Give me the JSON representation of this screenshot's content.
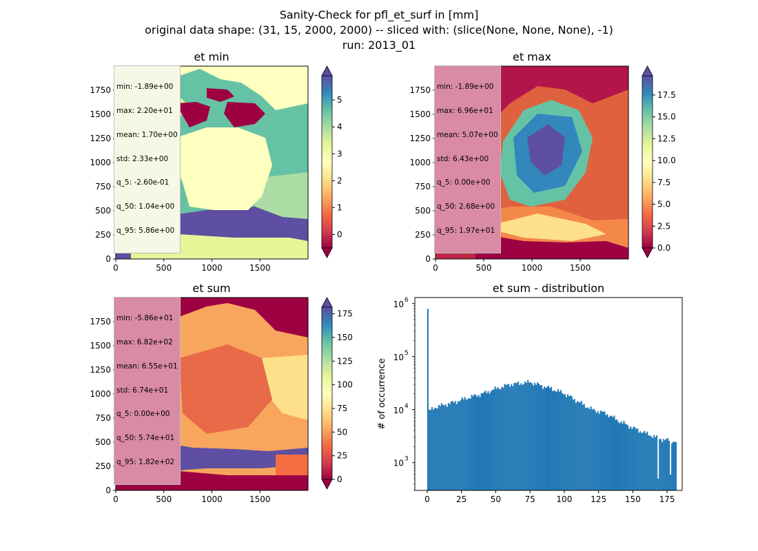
{
  "figure": {
    "suptitle": [
      "Sanity-Check for pfl_et_surf in [mm]",
      "original data shape: (31, 15, 2000, 2000) -- sliced with: (slice(None, None, None), -1)",
      "run: 2013_01"
    ]
  },
  "colors": {
    "histogram_bar": "#1f77b4",
    "colormap": "Spectral",
    "colormap_stops": [
      "#9e0142",
      "#d53e4f",
      "#f46d43",
      "#fdae61",
      "#fee08b",
      "#ffffbf",
      "#e6f598",
      "#abdda4",
      "#66c2a5",
      "#3288bd",
      "#5e4fa2"
    ],
    "stats_box_light": "#f7f7e6",
    "stats_box_pink": "#d98aa5"
  },
  "chart_data": [
    {
      "type": "heatmap",
      "title": "et min",
      "xlim": [
        0,
        2000
      ],
      "ylim": [
        0,
        2000
      ],
      "xticks": [
        "0",
        "500",
        "1000",
        "1500"
      ],
      "yticks": [
        "0",
        "250",
        "500",
        "750",
        "1000",
        "1250",
        "1500",
        "1750"
      ],
      "colorbar": {
        "range": [
          -0.5,
          5.9
        ],
        "ticks": [
          "0",
          "1",
          "2",
          "3",
          "4",
          "5"
        ],
        "extend": "both"
      },
      "stats": [
        "min: -1.89e+00",
        "max: 2.20e+01",
        "mean: 1.70e+00",
        "std: 2.33e+00",
        "q_5: -2.60e-01",
        "q_50: 1.04e+00",
        "q_95: 5.86e+00"
      ]
    },
    {
      "type": "heatmap",
      "title": "et max",
      "xlim": [
        0,
        2000
      ],
      "ylim": [
        0,
        2000
      ],
      "xticks": [
        "0",
        "500",
        "1000",
        "1500"
      ],
      "yticks": [
        "0",
        "250",
        "500",
        "750",
        "1000",
        "1250",
        "1500",
        "1750"
      ],
      "colorbar": {
        "range": [
          0,
          19.7
        ],
        "ticks": [
          "0.0",
          "2.5",
          "5.0",
          "7.5",
          "10.0",
          "12.5",
          "15.0",
          "17.5"
        ],
        "extend": "both"
      },
      "stats": [
        "min: -1.89e+00",
        "max: 6.96e+01",
        "mean: 5.07e+00",
        "std: 6.43e+00",
        "q_5: 0.00e+00",
        "q_50: 2.68e+00",
        "q_95: 1.97e+01"
      ]
    },
    {
      "type": "heatmap",
      "title": "et sum",
      "xlim": [
        0,
        2000
      ],
      "ylim": [
        0,
        2000
      ],
      "xticks": [
        "0",
        "500",
        "1000",
        "1500"
      ],
      "yticks": [
        "0",
        "250",
        "500",
        "750",
        "1000",
        "1250",
        "1500",
        "1750"
      ],
      "colorbar": {
        "range": [
          0,
          182
        ],
        "ticks": [
          "0",
          "25",
          "50",
          "75",
          "100",
          "125",
          "150",
          "175"
        ],
        "extend": "both"
      },
      "stats": [
        "min: -5.86e+01",
        "max: 6.82e+02",
        "mean: 6.55e+01",
        "std: 6.74e+01",
        "q_5: 0.00e+00",
        "q_50: 5.74e+01",
        "q_95: 1.82e+02"
      ]
    },
    {
      "type": "bar",
      "title": "et sum - distribution",
      "xlabel": "",
      "ylabel": "# of occurrence",
      "yscale": "log",
      "xlim": [
        -9,
        186
      ],
      "ylim": [
        300,
        1300000
      ],
      "xticks": [
        0,
        25,
        50,
        75,
        100,
        125,
        150,
        175
      ],
      "yticks": [
        {
          "value": 1000,
          "base": "10",
          "exp": "3"
        },
        {
          "value": 10000,
          "base": "10",
          "exp": "4"
        },
        {
          "value": 100000,
          "base": "10",
          "exp": "5"
        },
        {
          "value": 1000000,
          "base": "10",
          "exp": "6"
        }
      ],
      "bins": {
        "start": 0,
        "width": 1,
        "count": 182
      },
      "profile_points": [
        [
          0,
          9000
        ],
        [
          5,
          11000
        ],
        [
          10,
          12000
        ],
        [
          20,
          14000
        ],
        [
          30,
          17000
        ],
        [
          40,
          20000
        ],
        [
          50,
          25000
        ],
        [
          60,
          30000
        ],
        [
          70,
          32000
        ],
        [
          75,
          33000
        ],
        [
          80,
          30000
        ],
        [
          90,
          25000
        ],
        [
          100,
          20000
        ],
        [
          110,
          14000
        ],
        [
          120,
          10000
        ],
        [
          130,
          8500
        ],
        [
          140,
          6000
        ],
        [
          150,
          4500
        ],
        [
          160,
          3500
        ],
        [
          170,
          2800
        ],
        [
          181,
          2500
        ]
      ],
      "spikes": [
        {
          "x": 0,
          "value": 800000
        },
        {
          "x": 168,
          "value": 500
        },
        {
          "x": 177,
          "value": 600
        }
      ]
    }
  ]
}
